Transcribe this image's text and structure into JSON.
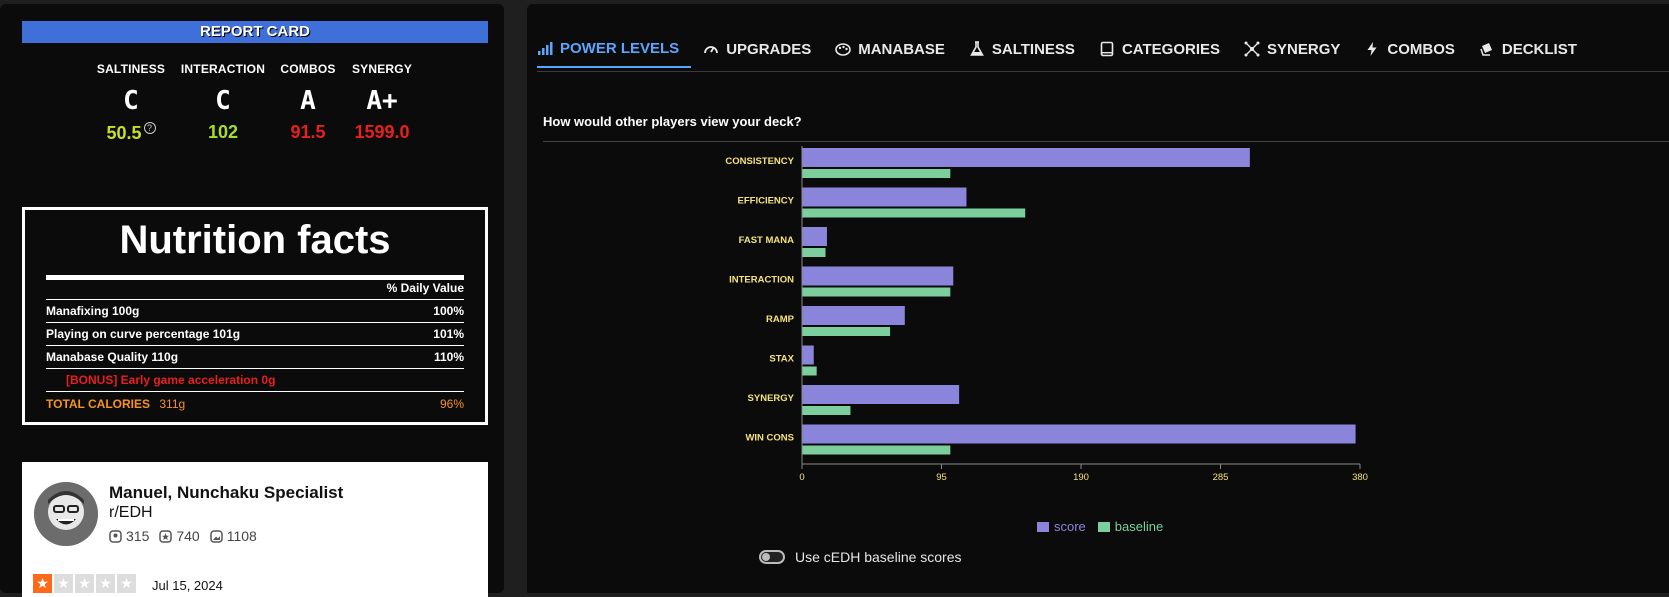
{
  "report_card": {
    "title": "REPORT CARD",
    "grades": [
      {
        "label": "SALTINESS",
        "grade": "C",
        "score": "50.5",
        "score_color": "#c8e022",
        "help": "?"
      },
      {
        "label": "INTERACTION",
        "grade": "C",
        "score": "102",
        "score_color": "#a4e02a"
      },
      {
        "label": "COMBOS",
        "grade": "A",
        "score": "91.5",
        "score_color": "#e81f1f"
      },
      {
        "label": "SYNERGY",
        "grade": "A+",
        "score": "1599.0",
        "score_color": "#e81f1f"
      }
    ]
  },
  "nutrition": {
    "title": "Nutrition facts",
    "daily_value_header": "% Daily Value",
    "rows": [
      {
        "label": "Manafixing 100g",
        "value": "100%"
      },
      {
        "label": "Playing on curve percentage 101g",
        "value": "101%"
      },
      {
        "label": "Manabase Quality 110g",
        "value": "110%"
      }
    ],
    "bonus": "[BONUS] Early game acceleration 0g",
    "total_label": "TOTAL CALORIES",
    "total_amount": "311g",
    "total_value": "96%"
  },
  "review": {
    "name": "Manuel, Nunchaku Specialist",
    "subreddit": "r/EDH",
    "stats": [
      "315",
      "740",
      "1108"
    ],
    "rating": 1,
    "date": "Jul 15, 2024"
  },
  "tabs": [
    {
      "label": "POWER LEVELS",
      "icon": "signal-bars-icon",
      "active": true
    },
    {
      "label": "UPGRADES",
      "icon": "gauge-icon"
    },
    {
      "label": "MANABASE",
      "icon": "palette-icon"
    },
    {
      "label": "SALTINESS",
      "icon": "flask-icon"
    },
    {
      "label": "CATEGORIES",
      "icon": "tablet-icon"
    },
    {
      "label": "SYNERGY",
      "icon": "network-icon"
    },
    {
      "label": "COMBOS",
      "icon": "bolt-icon"
    },
    {
      "label": "DECKLIST",
      "icon": "cards-icon"
    }
  ],
  "question": "How would other players view your deck?",
  "toggle_label": "Use cEDH baseline scores",
  "colors": {
    "score": "#8b84db",
    "baseline": "#7ccf9c",
    "accent": "#5aa6ff",
    "label": "#f6e27a"
  },
  "chart_data": {
    "type": "bar",
    "orientation": "horizontal",
    "categories": [
      "CONSISTENCY",
      "EFFICIENCY",
      "FAST MANA",
      "INTERACTION",
      "RAMP",
      "STAX",
      "SYNERGY",
      "WIN CONS"
    ],
    "series": [
      {
        "name": "score",
        "values": [
          305,
          112,
          17,
          103,
          70,
          8,
          107,
          377
        ]
      },
      {
        "name": "baseline",
        "values": [
          101,
          152,
          16,
          101,
          60,
          10,
          33,
          101
        ]
      }
    ],
    "xticks": [
      "0",
      "95",
      "190",
      "285",
      "380"
    ],
    "xlim": [
      0,
      380
    ],
    "legend": "bottom"
  }
}
